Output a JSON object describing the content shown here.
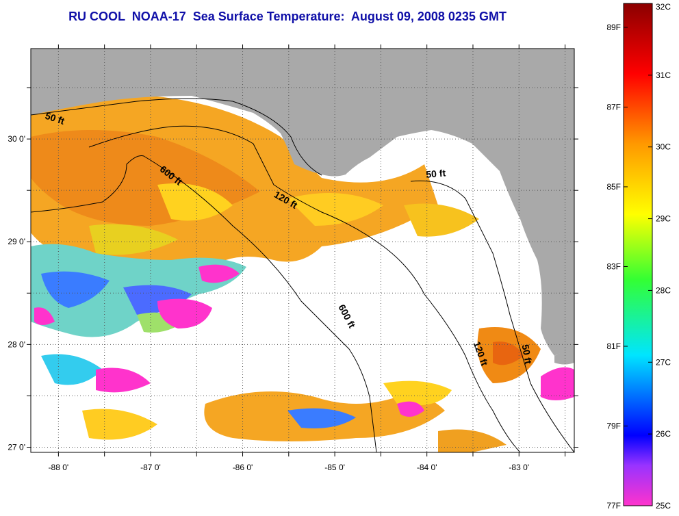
{
  "title": "RU COOL  NOAA-17  Sea Surface Temperature:  August 09, 2008 0235 GMT",
  "map": {
    "lon_range": [
      -88.3,
      -82.4
    ],
    "lat_range": [
      26.95,
      30.88
    ],
    "land_color": "#a9a9a9",
    "cloud_color": "#ffffff",
    "grid": "dotted",
    "x_ticks": [
      {
        "value": -88,
        "label": "-88 0'"
      },
      {
        "value": -87,
        "label": "-87 0'"
      },
      {
        "value": -86,
        "label": "-86 0'"
      },
      {
        "value": -85,
        "label": "-85 0'"
      },
      {
        "value": -84,
        "label": "-84 0'"
      },
      {
        "value": -83,
        "label": "-83 0'"
      }
    ],
    "y_ticks": [
      {
        "value": 27,
        "label": "27 0'"
      },
      {
        "value": 28,
        "label": "28 0'"
      },
      {
        "value": 29,
        "label": "29 0'"
      },
      {
        "value": 30,
        "label": "30 0'"
      }
    ],
    "contour_labels": [
      {
        "text": "50 ft",
        "lon": -88.05,
        "lat": 30.17,
        "rot": 18
      },
      {
        "text": "600 ft",
        "lon": -86.8,
        "lat": 29.62,
        "rot": 38
      },
      {
        "text": "120 ft",
        "lon": -85.55,
        "lat": 29.38,
        "rot": 30
      },
      {
        "text": "50 ft",
        "lon": -83.9,
        "lat": 29.63,
        "rot": -5
      },
      {
        "text": "600 ft",
        "lon": -84.9,
        "lat": 28.26,
        "rot": 62
      },
      {
        "text": "120 ft",
        "lon": -83.45,
        "lat": 27.9,
        "rot": 70
      },
      {
        "text": "50 ft",
        "lon": -82.95,
        "lat": 27.9,
        "rot": 80
      }
    ]
  },
  "colorbar": {
    "range_c": [
      25,
      32
    ],
    "colors": [
      "#ff33cc",
      "#9933ff",
      "#0000ff",
      "#00e5ff",
      "#33ff33",
      "#ffff00",
      "#ff9900",
      "#ff0000",
      "#8b0000"
    ],
    "celsius_ticks": [
      {
        "value": 32,
        "label": "32C"
      },
      {
        "value": 31,
        "label": "31C"
      },
      {
        "value": 30,
        "label": "30C"
      },
      {
        "value": 29,
        "label": "29C"
      },
      {
        "value": 28,
        "label": "28C"
      },
      {
        "value": 27,
        "label": "27C"
      },
      {
        "value": 26,
        "label": "26C"
      },
      {
        "value": 25,
        "label": "25C"
      }
    ],
    "fahrenheit_ticks": [
      {
        "value": 89,
        "label": "89F"
      },
      {
        "value": 87,
        "label": "87F"
      },
      {
        "value": 85,
        "label": "85F"
      },
      {
        "value": 83,
        "label": "83F"
      },
      {
        "value": 81,
        "label": "81F"
      },
      {
        "value": 79,
        "label": "79F"
      },
      {
        "value": 77,
        "label": "77F"
      }
    ]
  }
}
